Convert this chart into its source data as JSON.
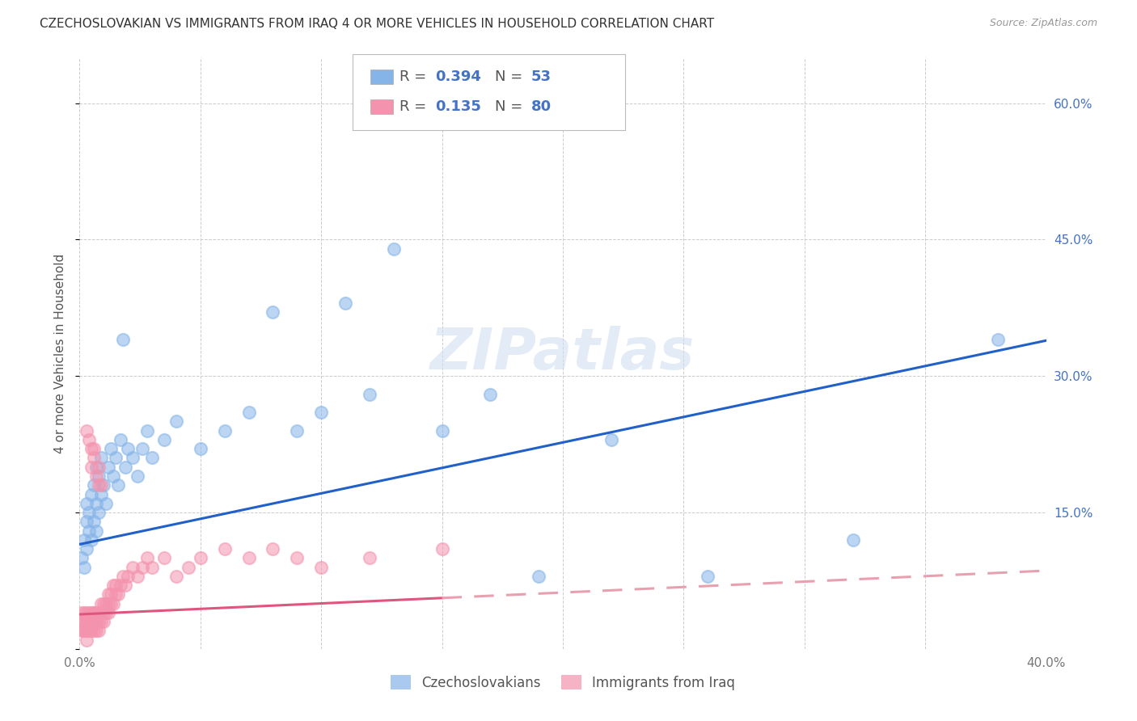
{
  "title": "CZECHOSLOVAKIAN VS IMMIGRANTS FROM IRAQ 4 OR MORE VEHICLES IN HOUSEHOLD CORRELATION CHART",
  "source": "Source: ZipAtlas.com",
  "ylabel_left": "4 or more Vehicles in Household",
  "xlim": [
    0.0,
    0.4
  ],
  "ylim": [
    0.0,
    0.65
  ],
  "y_ticks": [
    0.0,
    0.15,
    0.3,
    0.45,
    0.6
  ],
  "y_tick_labels_right": [
    "",
    "15.0%",
    "30.0%",
    "45.0%",
    "60.0%"
  ],
  "x_ticks": [
    0.0,
    0.05,
    0.1,
    0.15,
    0.2,
    0.25,
    0.3,
    0.35,
    0.4
  ],
  "x_tick_labels": [
    "0.0%",
    "",
    "",
    "",
    "",
    "",
    "",
    "",
    "40.0%"
  ],
  "legend_R1": "0.394",
  "legend_N1": "53",
  "legend_R2": "0.135",
  "legend_N2": "80",
  "series1_label": "Czechoslovakians",
  "series2_label": "Immigrants from Iraq",
  "series1_color": "#85b4e8",
  "series2_color": "#f493ae",
  "trend1_color": "#2060c8",
  "trend2_color": "#e05580",
  "trend2_dash_color": "#e8a0b0",
  "background_color": "#ffffff",
  "grid_color": "#cccccc",
  "watermark": "ZIPatlas",
  "title_fontsize": 11,
  "axis_label_fontsize": 11,
  "tick_fontsize": 11,
  "legend_fontsize": 13,
  "trend1_intercept": 0.115,
  "trend1_slope": 0.56,
  "trend2_intercept": 0.038,
  "trend2_slope": 0.12,
  "series1_x": [
    0.001,
    0.002,
    0.002,
    0.003,
    0.003,
    0.003,
    0.004,
    0.004,
    0.005,
    0.005,
    0.006,
    0.006,
    0.007,
    0.007,
    0.007,
    0.008,
    0.008,
    0.009,
    0.009,
    0.01,
    0.011,
    0.012,
    0.013,
    0.014,
    0.015,
    0.016,
    0.017,
    0.018,
    0.019,
    0.02,
    0.022,
    0.024,
    0.026,
    0.028,
    0.03,
    0.035,
    0.04,
    0.05,
    0.06,
    0.07,
    0.08,
    0.09,
    0.1,
    0.11,
    0.12,
    0.13,
    0.15,
    0.17,
    0.19,
    0.22,
    0.26,
    0.32,
    0.38
  ],
  "series1_y": [
    0.1,
    0.12,
    0.09,
    0.11,
    0.14,
    0.16,
    0.13,
    0.15,
    0.12,
    0.17,
    0.14,
    0.18,
    0.13,
    0.16,
    0.2,
    0.15,
    0.19,
    0.17,
    0.21,
    0.18,
    0.16,
    0.2,
    0.22,
    0.19,
    0.21,
    0.18,
    0.23,
    0.34,
    0.2,
    0.22,
    0.21,
    0.19,
    0.22,
    0.24,
    0.21,
    0.23,
    0.25,
    0.22,
    0.24,
    0.26,
    0.37,
    0.24,
    0.26,
    0.38,
    0.28,
    0.44,
    0.24,
    0.28,
    0.08,
    0.23,
    0.08,
    0.12,
    0.34
  ],
  "series2_x": [
    0.001,
    0.001,
    0.001,
    0.002,
    0.002,
    0.002,
    0.002,
    0.003,
    0.003,
    0.003,
    0.003,
    0.003,
    0.004,
    0.004,
    0.004,
    0.004,
    0.004,
    0.005,
    0.005,
    0.005,
    0.005,
    0.006,
    0.006,
    0.006,
    0.006,
    0.007,
    0.007,
    0.007,
    0.007,
    0.008,
    0.008,
    0.008,
    0.009,
    0.009,
    0.009,
    0.01,
    0.01,
    0.01,
    0.011,
    0.011,
    0.012,
    0.012,
    0.012,
    0.013,
    0.013,
    0.014,
    0.014,
    0.015,
    0.015,
    0.016,
    0.017,
    0.018,
    0.019,
    0.02,
    0.022,
    0.024,
    0.026,
    0.028,
    0.03,
    0.035,
    0.04,
    0.045,
    0.05,
    0.06,
    0.07,
    0.08,
    0.09,
    0.1,
    0.12,
    0.15,
    0.003,
    0.004,
    0.005,
    0.005,
    0.006,
    0.006,
    0.007,
    0.008,
    0.008,
    0.009
  ],
  "series2_y": [
    0.02,
    0.03,
    0.04,
    0.02,
    0.03,
    0.04,
    0.02,
    0.03,
    0.04,
    0.02,
    0.03,
    0.01,
    0.03,
    0.04,
    0.02,
    0.03,
    0.02,
    0.03,
    0.04,
    0.02,
    0.03,
    0.04,
    0.03,
    0.02,
    0.04,
    0.03,
    0.04,
    0.02,
    0.03,
    0.04,
    0.03,
    0.02,
    0.04,
    0.03,
    0.05,
    0.04,
    0.03,
    0.05,
    0.04,
    0.05,
    0.05,
    0.04,
    0.06,
    0.05,
    0.06,
    0.05,
    0.07,
    0.06,
    0.07,
    0.06,
    0.07,
    0.08,
    0.07,
    0.08,
    0.09,
    0.08,
    0.09,
    0.1,
    0.09,
    0.1,
    0.08,
    0.09,
    0.1,
    0.11,
    0.1,
    0.11,
    0.1,
    0.09,
    0.1,
    0.11,
    0.24,
    0.23,
    0.22,
    0.2,
    0.21,
    0.22,
    0.19,
    0.2,
    0.18,
    0.18
  ]
}
